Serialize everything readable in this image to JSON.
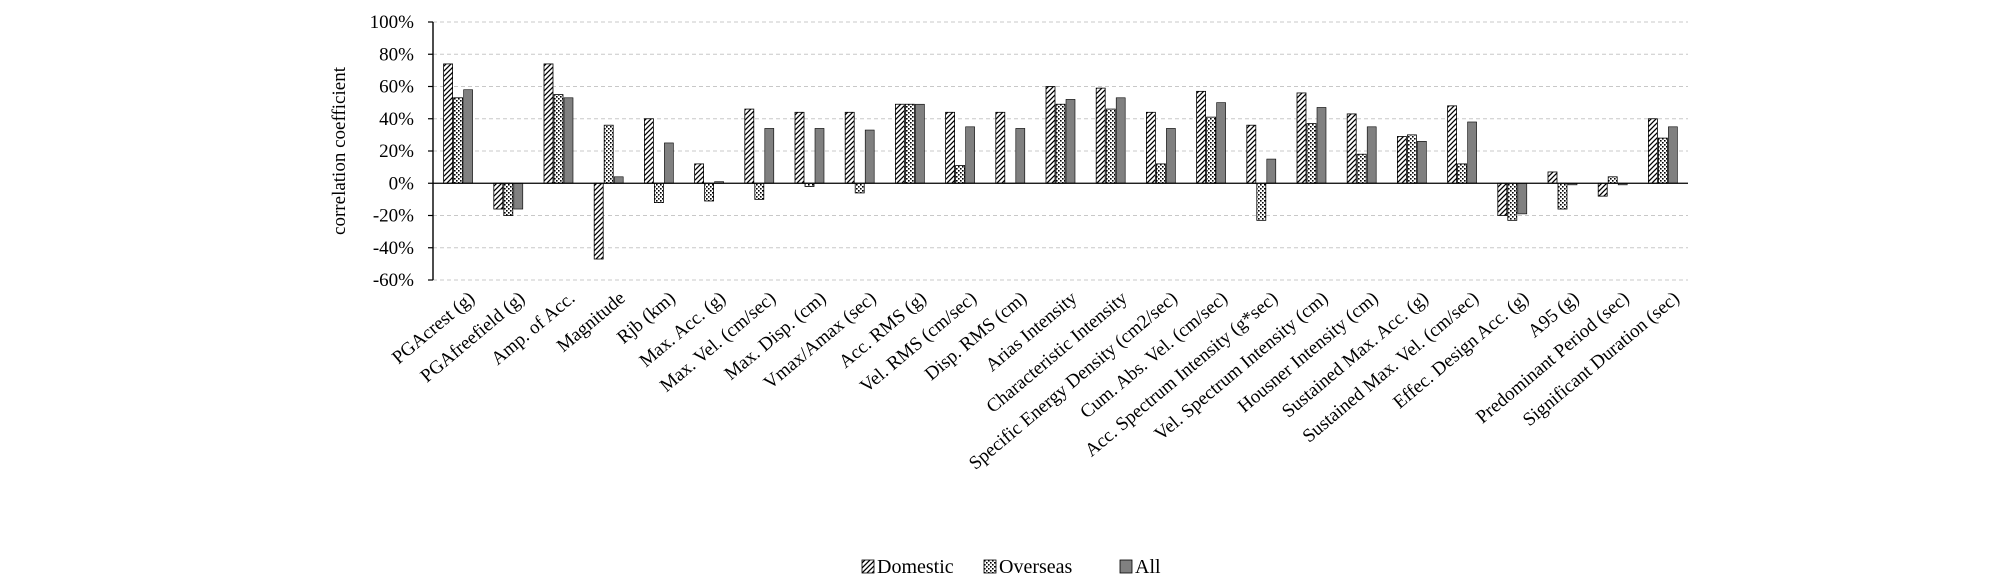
{
  "chart_data": {
    "type": "bar",
    "title": "",
    "xlabel": "",
    "ylabel": "correlation coefficient",
    "ylim": [
      -60,
      100
    ],
    "yticks": [
      100,
      80,
      60,
      40,
      20,
      0,
      -20,
      -40,
      -60
    ],
    "ytick_labels": [
      "100%",
      "80%",
      "60%",
      "40%",
      "20%",
      "0%",
      "-20%",
      "-40%",
      "-60%"
    ],
    "grid": "horizontal dashed",
    "legend_position": "bottom-center",
    "categories": [
      "PGAcrest (g)",
      "PGAfreefield (g)",
      "Amp. of Acc.",
      "Magnitude",
      "Rjb (km)",
      "Max. Acc. (g)",
      "Max. Vel. (cm/sec)",
      "Max. Disp. (cm)",
      "Vmax/Amax (sec)",
      "Acc. RMS (g)",
      "Vel. RMS (cm/sec)",
      "Disp. RMS (cm)",
      "Arias Intensity",
      "Characteristic Intensity",
      "Specific Energy Density (cm2/sec)",
      "Cum. Abs. Vel. (cm/sec)",
      "Acc. Spectrum Intensity (g*sec)",
      "Vel. Spectrum Intensity (cm)",
      "Housner Intensity (cm)",
      "Sustained Max. Acc. (g)",
      "Sustained Max. Vel. (cm/sec)",
      "Effec. Design Acc. (g)",
      "A95 (g)",
      "Predominant Period (sec)",
      "Significant Duration (sec)"
    ],
    "series": [
      {
        "name": "Domestic",
        "pattern": "diagonal-hatch",
        "values": [
          74,
          -16,
          74,
          -47,
          40,
          12,
          46,
          44,
          44,
          49,
          44,
          44,
          60,
          59,
          44,
          57,
          36,
          56,
          43,
          29,
          48,
          -20,
          7,
          -8,
          40
        ]
      },
      {
        "name": "Overseas",
        "pattern": "dotted",
        "values": [
          53,
          -20,
          55,
          36,
          -12,
          -11,
          -10,
          -2,
          -6,
          49,
          11,
          0,
          49,
          46,
          12,
          41,
          -23,
          37,
          18,
          30,
          12,
          -23,
          -16,
          4,
          28
        ]
      },
      {
        "name": "All",
        "pattern": "solid-gray",
        "color": "#808080",
        "values": [
          58,
          -16,
          53,
          4,
          25,
          1,
          34,
          34,
          33,
          49,
          35,
          34,
          52,
          53,
          34,
          50,
          15,
          47,
          35,
          26,
          38,
          -19,
          -1,
          -1,
          35
        ]
      }
    ]
  }
}
